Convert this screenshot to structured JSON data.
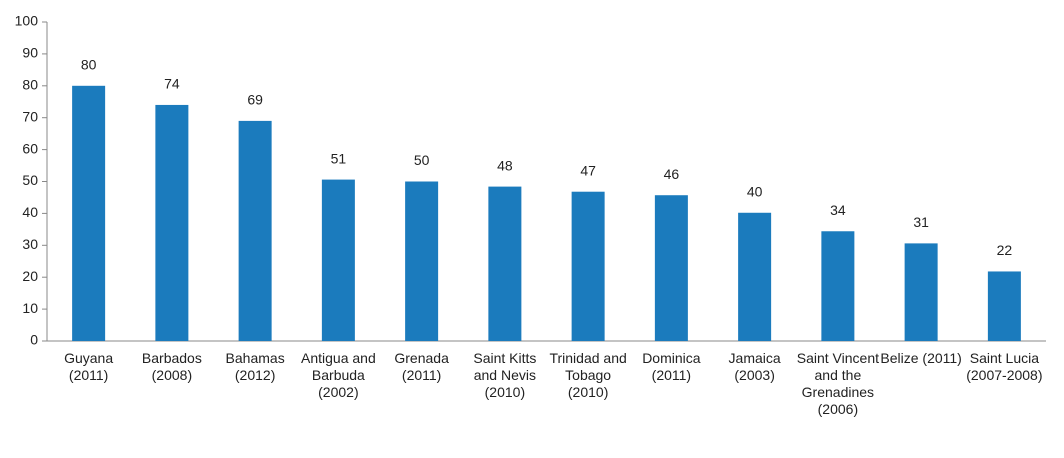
{
  "chart_data": {
    "type": "bar",
    "categories": [
      "Guyana (2011)",
      "Barbados (2008)",
      "Bahamas (2012)",
      "Antigua and Barbuda (2002)",
      "Grenada (2011)",
      "Saint Kitts and Nevis (2010)",
      "Trinidad and Tobago (2010)",
      "Dominica (2011)",
      "Jamaica (2003)",
      "Saint Vincent and the Grenadines (2006)",
      "Belize (2011)",
      "Saint Lucia (2007-2008)"
    ],
    "values": [
      80,
      74,
      69,
      50.6,
      50,
      48.4,
      46.8,
      45.7,
      40.2,
      34.4,
      30.6,
      21.8
    ],
    "value_labels": [
      "80",
      "74",
      "69",
      "51",
      "50",
      "48",
      "47",
      "46",
      "40",
      "34",
      "31",
      "22"
    ],
    "color": "#1b7bbd",
    "ylim": [
      0,
      100
    ],
    "yticks": [
      0,
      10,
      20,
      30,
      40,
      50,
      60,
      70,
      80,
      90,
      100
    ],
    "grid": false
  }
}
